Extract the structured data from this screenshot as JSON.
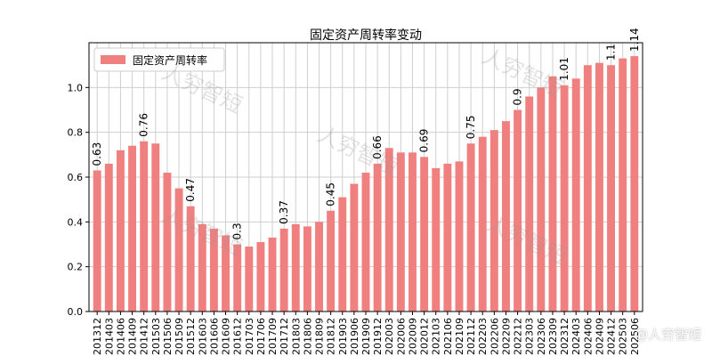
{
  "chart_data": {
    "type": "bar",
    "title": "固定资产周转率变动",
    "legend": "固定资产周转率",
    "legend_position": "top-left",
    "xlabel": "",
    "ylabel": "",
    "ylim": [
      0,
      1.2
    ],
    "yticks": [
      "0.0",
      "0.2",
      "0.4",
      "0.6",
      "0.8",
      "1.0"
    ],
    "grid": true,
    "bar_color": "#f08080",
    "categories": [
      "201312",
      "201403",
      "201406",
      "201409",
      "201412",
      "201503",
      "201506",
      "201509",
      "201512",
      "201603",
      "201606",
      "201609",
      "201612",
      "201703",
      "201706",
      "201709",
      "201712",
      "201803",
      "201806",
      "201809",
      "201812",
      "201903",
      "201906",
      "201909",
      "201912",
      "202003",
      "202006",
      "202009",
      "202012",
      "202103",
      "202106",
      "202109",
      "202112",
      "202203",
      "202206",
      "202209",
      "202212",
      "202303",
      "202306",
      "202309",
      "202312",
      "202403",
      "202406",
      "202409",
      "202412",
      "202503",
      "202506"
    ],
    "tick_labels": [
      "201312",
      "201403",
      "201406",
      "201409",
      "201412",
      "201503",
      "201506",
      "201509",
      "201512",
      "201603",
      "201606",
      "201609",
      "201612",
      "201703",
      "201706",
      "201709",
      "201712",
      "201803",
      "201806",
      "201809",
      "201812",
      "201903",
      "201906",
      "201909",
      "201912",
      "202003",
      "202006",
      "202009",
      "202012",
      "202103",
      "202106",
      "202109",
      "202112",
      "202203",
      "202206",
      "202209",
      "202212",
      "202303",
      "202306",
      "202309",
      "202312",
      "202403",
      "202406",
      "202409",
      "202412",
      "202503",
      "202506"
    ],
    "values": [
      0.63,
      0.66,
      0.72,
      0.74,
      0.76,
      0.75,
      0.62,
      0.55,
      0.47,
      0.39,
      0.37,
      0.34,
      0.3,
      0.29,
      0.31,
      0.33,
      0.37,
      0.39,
      0.38,
      0.4,
      0.45,
      0.51,
      0.57,
      0.62,
      0.66,
      0.73,
      0.71,
      0.71,
      0.69,
      0.64,
      0.66,
      0.67,
      0.75,
      0.78,
      0.81,
      0.85,
      0.9,
      0.96,
      1.0,
      1.05,
      1.01,
      1.04,
      1.1,
      1.11,
      1.1,
      1.13,
      1.14
    ],
    "data_labels": [
      {
        "index": 0,
        "text": "0.63"
      },
      {
        "index": 4,
        "text": "0.76"
      },
      {
        "index": 8,
        "text": "0.47"
      },
      {
        "index": 12,
        "text": "0.3"
      },
      {
        "index": 16,
        "text": "0.37"
      },
      {
        "index": 20,
        "text": "0.45"
      },
      {
        "index": 24,
        "text": "0.66"
      },
      {
        "index": 28,
        "text": "0.69"
      },
      {
        "index": 32,
        "text": "0.75"
      },
      {
        "index": 36,
        "text": "0.9"
      },
      {
        "index": 40,
        "text": "1.01"
      },
      {
        "index": 44,
        "text": "1.1"
      },
      {
        "index": 46,
        "text": "1.14"
      }
    ]
  },
  "watermark": {
    "text": "人穷智短",
    "brand_text": "@人穷智短"
  }
}
